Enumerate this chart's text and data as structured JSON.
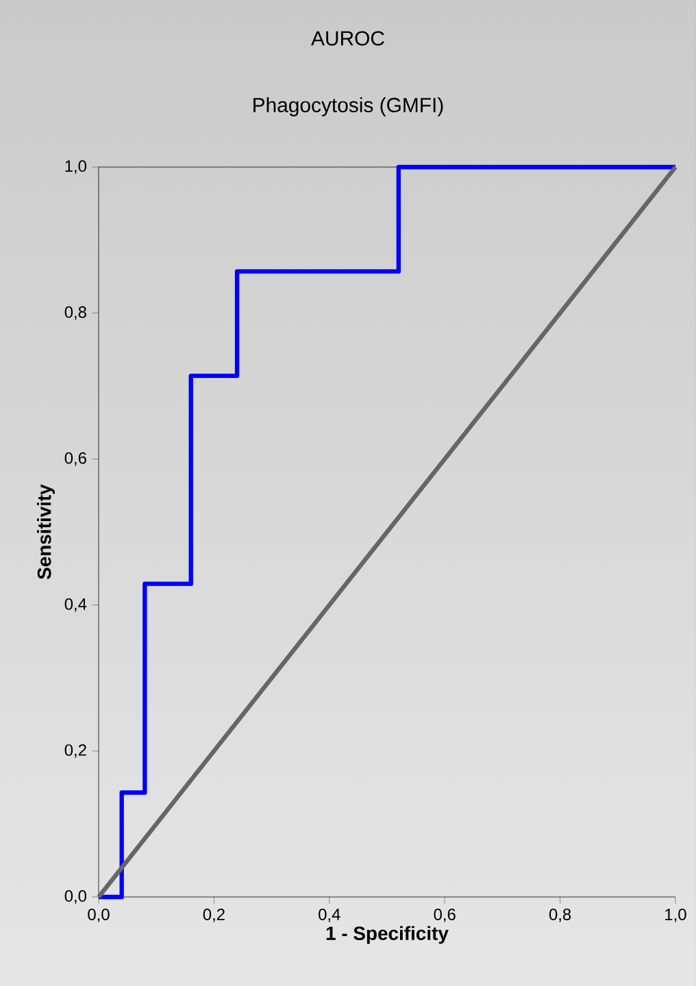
{
  "chart_data": {
    "type": "step",
    "title": "AUROC",
    "subtitle": "Phagocytosis (GMFI)",
    "xlabel": "1 - Specificity",
    "ylabel": "Sensitivity",
    "series": [
      {
        "color": "#0000ff",
        "x": [
          0,
          0.04,
          0.08,
          0.16,
          0.24,
          0.52,
          1
        ],
        "values": [
          0,
          0.143,
          0.429,
          0.714,
          0.857,
          1,
          1
        ]
      },
      {
        "type": "line",
        "color": "#666666",
        "x": [
          0,
          1
        ],
        "values": [
          0,
          1
        ]
      }
    ],
    "xlim": [
      0,
      1
    ],
    "ylim": [
      0,
      1
    ],
    "xticks": [
      {
        "value": 0,
        "label": "0,0"
      },
      {
        "value": 0.2,
        "label": "0,2"
      },
      {
        "value": 0.4,
        "label": "0,4"
      },
      {
        "value": 0.6,
        "label": "0,6"
      },
      {
        "value": 0.8,
        "label": "0,8"
      },
      {
        "value": 1,
        "label": "1,0"
      }
    ],
    "yticks": [
      {
        "value": 0,
        "label": "0,0"
      },
      {
        "value": 0.2,
        "label": "0,2"
      },
      {
        "value": 0.4,
        "label": "0,4"
      },
      {
        "value": 0.6,
        "label": "0,6"
      },
      {
        "value": 0.8,
        "label": "0,8"
      },
      {
        "value": 1,
        "label": "1,0"
      }
    ],
    "marker": "none"
  }
}
